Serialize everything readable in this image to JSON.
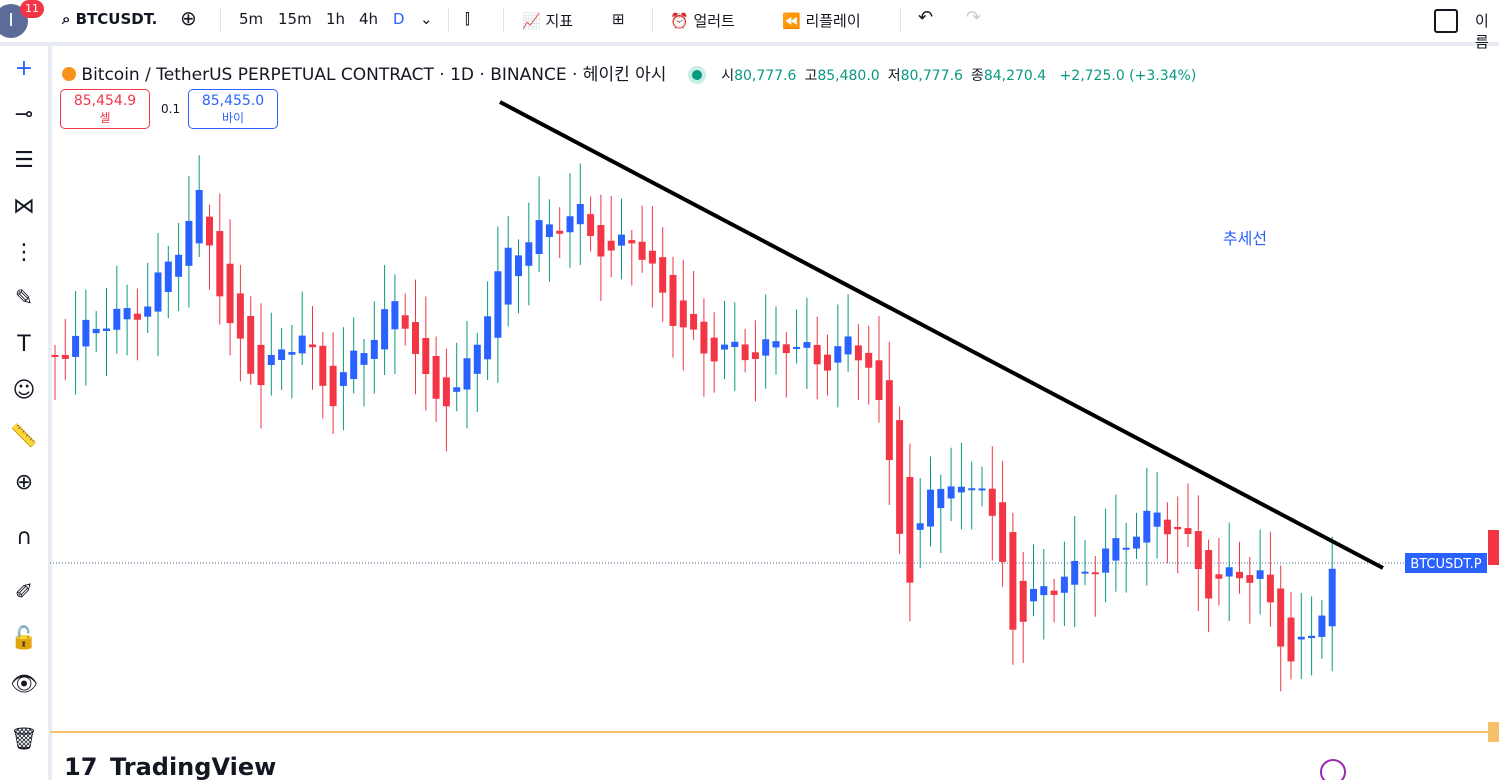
{
  "toolbar": {
    "avatar": "I",
    "badge": "11",
    "symbol": "BTCUSDT.",
    "intervals": [
      "5m",
      "15m",
      "1h",
      "4h",
      "D"
    ],
    "indicators": "지표",
    "alerts": "얼러트",
    "replay": "리플레이",
    "name": "이름"
  },
  "header": {
    "title": "Bitcoin / TetherUS PERPETUAL CONTRACT · 1D · BINANCE · 헤이킨 아시",
    "ohlc": [
      {
        "label": "시",
        "value": "80,777.6"
      },
      {
        "label": "고",
        "value": "85,480.0"
      },
      {
        "label": "저",
        "value": "80,777.6"
      },
      {
        "label": "종",
        "value": "84,270.4"
      }
    ],
    "change": "+2,725.0 (+3.34%)"
  },
  "trade": {
    "sell_price": "85,454.9",
    "sell": "셀",
    "spread": "0.1",
    "buy_price": "85,455.0",
    "buy": "바이"
  },
  "chart": {
    "annotation": "추세선",
    "symbol_label": "BTCUSDT.P",
    "logo": "TradingView"
  }
}
